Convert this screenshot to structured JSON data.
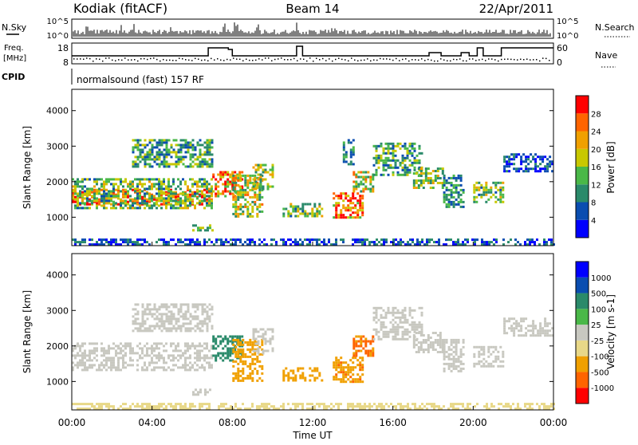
{
  "header": {
    "site": "Kodiak (fitACF)",
    "beam": "Beam 14",
    "date": "22/Apr/2011"
  },
  "params": {
    "nsky_label": "N.Sky",
    "nsearch_label": "N.Search",
    "noise_ticks": [
      "10^5",
      "10^0"
    ],
    "freq_label": "Freq.",
    "freq_unit": "[MHz]",
    "freq_ticks": [
      "18",
      "8"
    ],
    "nave_label": "Nave",
    "nave_ticks": [
      "60",
      "0"
    ],
    "cpid_label": "CPID",
    "cpid_text": "normalsound (fast) 157 RF"
  },
  "colors": {
    "power": [
      "#0000ff",
      "#0a4db0",
      "#2a8a6a",
      "#4ab848",
      "#c8c800",
      "#f0a000",
      "#ff6400",
      "#ff0000"
    ],
    "velocity": [
      "#ff0000",
      "#ff6400",
      "#f0a000",
      "#e8d888",
      "#c8c8c0",
      "#4ab848",
      "#2a8a6a",
      "#0a4db0",
      "#0000ff"
    ],
    "noise_line": "#000000"
  },
  "chart_data": [
    {
      "type": "heatmap",
      "name": "power",
      "ylabel": "Slant Range [km]",
      "y_ticks": [
        "1000",
        "2000",
        "3000",
        "4000"
      ],
      "ylim": [
        200,
        4600
      ],
      "xlim": [
        0,
        24
      ],
      "colorbar_label": "Power [dB]",
      "colorbar_ticks": [
        "4",
        "8",
        "12",
        "16",
        "20",
        "24",
        "28"
      ],
      "colorbar_range": [
        0,
        32
      ],
      "regions": [
        {
          "x": [
            0,
            7
          ],
          "y": [
            1350,
            1800
          ],
          "v": 24
        },
        {
          "x": [
            0,
            7
          ],
          "y": [
            1250,
            2100
          ],
          "v": 14
        },
        {
          "x": [
            3,
            7
          ],
          "y": [
            2400,
            3200
          ],
          "v": 12
        },
        {
          "x": [
            7,
            8.5
          ],
          "y": [
            1600,
            2300
          ],
          "v": 22
        },
        {
          "x": [
            8,
            9.5
          ],
          "y": [
            1000,
            2200
          ],
          "v": 18
        },
        {
          "x": [
            9,
            10
          ],
          "y": [
            1800,
            2500
          ],
          "v": 16
        },
        {
          "x": [
            6,
            7
          ],
          "y": [
            600,
            800
          ],
          "v": 12
        },
        {
          "x": [
            10.5,
            12.5
          ],
          "y": [
            1000,
            1400
          ],
          "v": 14
        },
        {
          "x": [
            13,
            14.5
          ],
          "y": [
            1000,
            1700
          ],
          "v": 26
        },
        {
          "x": [
            14,
            15
          ],
          "y": [
            1700,
            2300
          ],
          "v": 18
        },
        {
          "x": [
            13.5,
            14
          ],
          "y": [
            2500,
            3200
          ],
          "v": 10
        },
        {
          "x": [
            15,
            17.5
          ],
          "y": [
            2200,
            3100
          ],
          "v": 12
        },
        {
          "x": [
            17,
            18.5
          ],
          "y": [
            1800,
            2400
          ],
          "v": 16
        },
        {
          "x": [
            18.5,
            19.5
          ],
          "y": [
            1300,
            2200
          ],
          "v": 10
        },
        {
          "x": [
            20,
            21.5
          ],
          "y": [
            1400,
            2000
          ],
          "v": 14
        },
        {
          "x": [
            21.5,
            24
          ],
          "y": [
            2300,
            2800
          ],
          "v": 6
        },
        {
          "x": [
            0,
            24
          ],
          "y": [
            200,
            400
          ],
          "v": 6
        }
      ]
    },
    {
      "type": "heatmap",
      "name": "velocity",
      "ylabel": "Slant Range [km]",
      "y_ticks": [
        "1000",
        "2000",
        "3000",
        "4000"
      ],
      "ylim": [
        200,
        4600
      ],
      "xlim": [
        0,
        24
      ],
      "xlabel": "Time UT",
      "x_ticks": [
        "00:00",
        "04:00",
        "08:00",
        "12:00",
        "16:00",
        "20:00",
        "00:00"
      ],
      "colorbar_label": "Velocity [m s-1]",
      "colorbar_ticks": [
        "-1000",
        "-500",
        "-100",
        "-25",
        "25",
        "100",
        "500",
        "1000"
      ],
      "regions": [
        {
          "x": [
            0,
            7
          ],
          "y": [
            1300,
            2100
          ],
          "v": 0
        },
        {
          "x": [
            3,
            7
          ],
          "y": [
            2400,
            3200
          ],
          "v": 0
        },
        {
          "x": [
            7,
            8.5
          ],
          "y": [
            1600,
            2300
          ],
          "v": 150
        },
        {
          "x": [
            8,
            9.5
          ],
          "y": [
            1000,
            2200
          ],
          "v": -150
        },
        {
          "x": [
            9,
            10
          ],
          "y": [
            1800,
            2500
          ],
          "v": 0
        },
        {
          "x": [
            6,
            7
          ],
          "y": [
            600,
            800
          ],
          "v": 0
        },
        {
          "x": [
            10.5,
            12.5
          ],
          "y": [
            1000,
            1400
          ],
          "v": -300
        },
        {
          "x": [
            13,
            14.5
          ],
          "y": [
            1000,
            1700
          ],
          "v": -400
        },
        {
          "x": [
            14,
            15
          ],
          "y": [
            1700,
            2300
          ],
          "v": -600
        },
        {
          "x": [
            15,
            17.5
          ],
          "y": [
            2200,
            3100
          ],
          "v": 0
        },
        {
          "x": [
            17,
            18.5
          ],
          "y": [
            1800,
            2400
          ],
          "v": 0
        },
        {
          "x": [
            18.5,
            19.5
          ],
          "y": [
            1300,
            2200
          ],
          "v": 0
        },
        {
          "x": [
            20,
            21.5
          ],
          "y": [
            1400,
            2000
          ],
          "v": 0
        },
        {
          "x": [
            21.5,
            24
          ],
          "y": [
            2300,
            2800
          ],
          "v": 0
        },
        {
          "x": [
            0,
            24
          ],
          "y": [
            200,
            400
          ],
          "v": -40
        }
      ]
    }
  ]
}
